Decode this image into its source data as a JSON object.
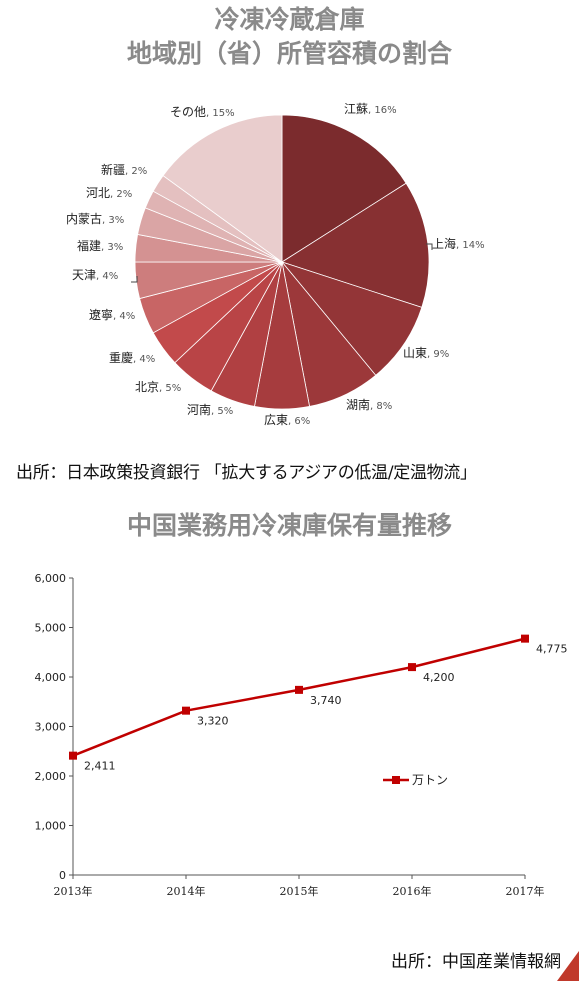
{
  "chart_data": [
    {
      "type": "pie",
      "title": "冷凍冷蔵倉庫",
      "subtitle": "地域別（省）所管容積の割合",
      "slices": [
        {
          "label": "江蘇",
          "value": 16,
          "value_label": "16%",
          "color": "#7b2b2d"
        },
        {
          "label": "上海",
          "value": 14,
          "value_label": "14%",
          "color": "#873032"
        },
        {
          "label": "山東",
          "value": 9,
          "value_label": "9%",
          "color": "#933537"
        },
        {
          "label": "湖南",
          "value": 8,
          "value_label": "8%",
          "color": "#9c383a"
        },
        {
          "label": "広東",
          "value": 6,
          "value_label": "6%",
          "color": "#a63c3e"
        },
        {
          "label": "河南",
          "value": 5,
          "value_label": "5%",
          "color": "#b04042"
        },
        {
          "label": "北京",
          "value": 5,
          "value_label": "5%",
          "color": "#b94446"
        },
        {
          "label": "重慶",
          "value": 4,
          "value_label": "4%",
          "color": "#c24a4b"
        },
        {
          "label": "遼寧",
          "value": 4,
          "value_label": "4%",
          "color": "#c86565"
        },
        {
          "label": "天津",
          "value": 4,
          "value_label": "4%",
          "color": "#cd7d7d"
        },
        {
          "label": "福建",
          "value": 3,
          "value_label": "3%",
          "color": "#d49292"
        },
        {
          "label": "内蒙古",
          "value": 3,
          "value_label": "3%",
          "color": "#daa5a5"
        },
        {
          "label": "河北",
          "value": 2,
          "value_label": "2%",
          "color": "#dfb3b3"
        },
        {
          "label": "新疆",
          "value": 2,
          "value_label": "2%",
          "color": "#e4c0c0"
        },
        {
          "label": "その他",
          "value": 15,
          "value_label": "15%",
          "color": "#e9cdcd"
        }
      ],
      "source": "出所：日本政策投資銀行 「拡大するアジアの低温/定温物流」"
    },
    {
      "type": "line",
      "title": "中国業務用冷凍庫保有量推移",
      "categories": [
        "2013年",
        "2014年",
        "2015年",
        "2016年",
        "2017年"
      ],
      "series": [
        {
          "name": "万トン",
          "values": [
            2411,
            3320,
            3740,
            4200,
            4775
          ],
          "value_labels": [
            "2,411",
            "3,320",
            "3,740",
            "4,200",
            "4,775"
          ],
          "color": "#c00000"
        }
      ],
      "ylim": [
        0,
        6000
      ],
      "yticks": [
        "0",
        "1,000",
        "2,000",
        "3,000",
        "4,000",
        "5,000",
        "6,000"
      ],
      "legend": "right",
      "grid": false,
      "source": "出所：中国産業情報網"
    }
  ]
}
